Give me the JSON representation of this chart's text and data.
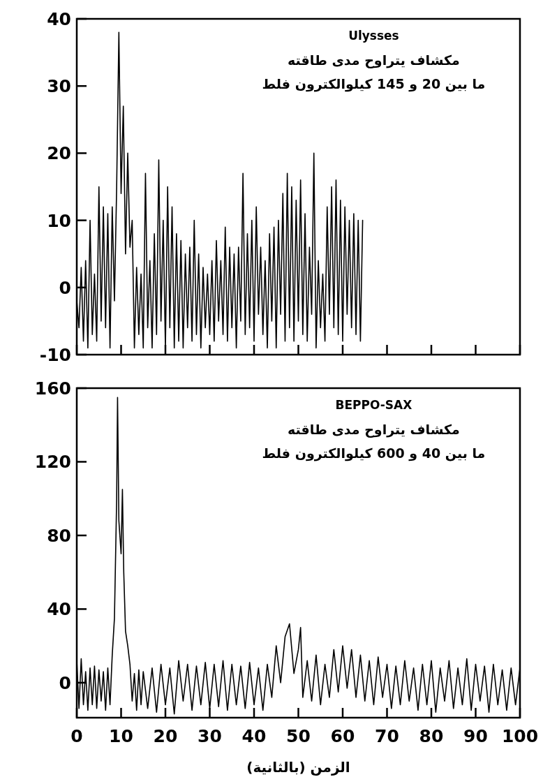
{
  "chart_data": [
    {
      "type": "line",
      "title": "Ulysses",
      "annotations": [
        "مكشاف يتراوح مدى طاقته",
        "ما بين 20 و 145 كيلوالكترون فلط"
      ],
      "xlim": [
        0,
        100
      ],
      "xticks": [
        0,
        10,
        20,
        30,
        40,
        50,
        60,
        70,
        80,
        90,
        100
      ],
      "ylim": [
        -10,
        40
      ],
      "yticks": [
        -10,
        0,
        10,
        20,
        30,
        40
      ],
      "tick_labels": "y",
      "grid": false,
      "marker": "none",
      "line_style": "solid",
      "series": [
        {
          "color": "#000000",
          "x": [
            0,
            0.5,
            1,
            1.5,
            2,
            2.5,
            3,
            3.5,
            4,
            4.5,
            5,
            5.5,
            6,
            6.5,
            7,
            7.5,
            8,
            8.5,
            9,
            9.5,
            10,
            10.5,
            11,
            11.5,
            12,
            12.5,
            13,
            13.5,
            14,
            14.5,
            15,
            15.5,
            16,
            16.5,
            17,
            17.5,
            18,
            18.5,
            19,
            19.5,
            20,
            20.5,
            21,
            21.5,
            22,
            22.5,
            23,
            23.5,
            24,
            24.5,
            25,
            25.5,
            26,
            26.5,
            27,
            27.5,
            28,
            28.5,
            29,
            29.5,
            30,
            30.5,
            31,
            31.5,
            32,
            32.5,
            33,
            33.5,
            34,
            34.5,
            35,
            35.5,
            36,
            36.5,
            37,
            37.5,
            38,
            38.5,
            39,
            39.5,
            40,
            40.5,
            41,
            41.5,
            42,
            42.5,
            43,
            43.5,
            44,
            44.5,
            45,
            45.5,
            46,
            46.5,
            47,
            47.5,
            48,
            48.5,
            49,
            49.5,
            50,
            50.5,
            51,
            51.5,
            52,
            52.5,
            53,
            53.5,
            54,
            54.5,
            55,
            55.5,
            56,
            56.5,
            57,
            57.5,
            58,
            58.5,
            59,
            59.5,
            60,
            60.5,
            61,
            61.5,
            62,
            62.5,
            63,
            63.5,
            64,
            64.5
          ],
          "values": [
            -2,
            -6,
            3,
            -8,
            4,
            -9,
            10,
            -7,
            2,
            -8,
            15,
            -5,
            12,
            -6,
            11,
            -9,
            12,
            -2,
            15,
            38,
            14,
            27,
            5,
            20,
            6,
            10,
            -9,
            3,
            -7,
            2,
            -9,
            17,
            -6,
            4,
            -9,
            8,
            -7,
            19,
            -5,
            10,
            -9,
            15,
            -6,
            12,
            -9,
            8,
            -8,
            7,
            -9,
            5,
            -6,
            6,
            -8,
            10,
            -7,
            5,
            -9,
            3,
            -6,
            2,
            -7,
            4,
            -8,
            7,
            -5,
            4,
            -7,
            9,
            -8,
            6,
            -6,
            5,
            -9,
            6,
            -5,
            17,
            -7,
            8,
            -6,
            10,
            -8,
            12,
            -4,
            6,
            -7,
            4,
            -9,
            8,
            -5,
            9,
            -9,
            10,
            -4,
            14,
            -8,
            17,
            -6,
            15,
            -8,
            13,
            -5,
            16,
            -7,
            11,
            -8,
            6,
            -4,
            20,
            -9,
            4,
            -6,
            2,
            -8,
            12,
            -4,
            15,
            -6,
            16,
            -7,
            13,
            -8,
            12,
            -4,
            10,
            -6,
            11,
            -7,
            10,
            -8,
            10
          ]
        }
      ]
    },
    {
      "type": "line",
      "title": "BEPPO-SAX",
      "annotations": [
        "مكشاف يتراوح مدى طاقته",
        "ما بين 40 و 600 كيلوالكترون فلط"
      ],
      "xlabel": "الزمن (بالثانية)",
      "xlim": [
        0,
        100
      ],
      "xticks": [
        0,
        10,
        20,
        30,
        40,
        50,
        60,
        70,
        80,
        90,
        100
      ],
      "ylim": [
        -19,
        160
      ],
      "yticks": [
        0,
        40,
        80,
        120,
        160
      ],
      "grid": false,
      "marker": "none",
      "line_style": "solid",
      "series": [
        {
          "color": "#000000",
          "x": [
            0,
            0.5,
            1,
            1.5,
            2,
            2.5,
            3,
            3.5,
            4,
            4.5,
            5,
            5.5,
            6,
            6.5,
            7,
            7.5,
            8,
            8.5,
            9,
            9.2,
            9.5,
            10,
            10.3,
            10.6,
            11,
            11.5,
            12,
            12.5,
            13,
            13.5,
            14,
            14.5,
            15,
            16,
            17,
            18,
            19,
            20,
            21,
            22,
            23,
            24,
            25,
            26,
            27,
            28,
            29,
            30,
            31,
            32,
            33,
            34,
            35,
            36,
            37,
            38,
            39,
            40,
            41,
            42,
            43,
            44,
            45,
            46,
            47,
            48,
            49,
            50,
            50.5,
            51,
            52,
            53,
            54,
            55,
            56,
            57,
            58,
            59,
            60,
            61,
            62,
            63,
            64,
            65,
            66,
            67,
            68,
            69,
            70,
            71,
            72,
            73,
            74,
            75,
            76,
            77,
            78,
            79,
            80,
            81,
            82,
            83,
            84,
            85,
            86,
            87,
            88,
            89,
            90,
            91,
            92,
            93,
            94,
            95,
            96,
            97,
            98,
            99,
            100
          ],
          "values": [
            12,
            -14,
            13,
            -12,
            6,
            -15,
            8,
            -12,
            9,
            -14,
            7,
            -10,
            6,
            -15,
            8,
            -12,
            15,
            35,
            100,
            155,
            88,
            70,
            105,
            60,
            28,
            20,
            10,
            -10,
            5,
            -15,
            7,
            -12,
            6,
            -14,
            8,
            -16,
            10,
            -12,
            8,
            -17,
            12,
            -10,
            10,
            -15,
            9,
            -12,
            11,
            -14,
            10,
            -13,
            12,
            -15,
            10,
            -12,
            9,
            -14,
            11,
            -12,
            8,
            -15,
            10,
            -8,
            20,
            0,
            25,
            32,
            5,
            18,
            30,
            -8,
            12,
            -10,
            15,
            -12,
            10,
            -8,
            18,
            -5,
            20,
            -3,
            18,
            -8,
            15,
            -10,
            12,
            -12,
            14,
            -8,
            10,
            -14,
            9,
            -12,
            12,
            -10,
            8,
            -15,
            10,
            -12,
            12,
            -16,
            8,
            -10,
            12,
            -14,
            8,
            -12,
            13,
            -15,
            10,
            -10,
            9,
            -16,
            10,
            -12,
            7,
            -15,
            8,
            -12,
            8
          ]
        }
      ]
    }
  ]
}
